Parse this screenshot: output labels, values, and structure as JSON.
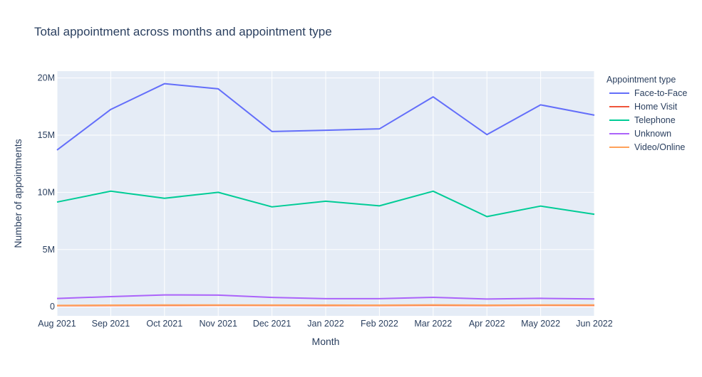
{
  "chart_data": {
    "type": "line",
    "title": "Total appointment across months and appointment type",
    "xlabel": "Month",
    "ylabel": "Number of appointments",
    "categories": [
      "Aug 2021",
      "Sep 2021",
      "Oct 2021",
      "Nov 2021",
      "Dec 2021",
      "Jan 2022",
      "Feb 2022",
      "Mar 2022",
      "Apr 2022",
      "May 2022",
      "Jun 2022"
    ],
    "ylim": [
      -800000,
      20600000
    ],
    "yticks": [
      0,
      5000000,
      10000000,
      15000000,
      20000000
    ],
    "ytick_labels": [
      "0",
      "5M",
      "10M",
      "15M",
      "20M"
    ],
    "grid": true,
    "legend": {
      "title": "Appointment type",
      "position": "right"
    },
    "series": [
      {
        "name": "Face-to-Face",
        "color": "#636efa",
        "values": [
          13700000,
          17250000,
          19500000,
          19050000,
          15320000,
          15430000,
          15550000,
          18350000,
          15050000,
          17650000,
          16750000
        ]
      },
      {
        "name": "Home Visit",
        "color": "#ef553b",
        "values": [
          90000,
          100000,
          110000,
          120000,
          110000,
          105000,
          100000,
          115000,
          100000,
          115000,
          110000
        ]
      },
      {
        "name": "Telephone",
        "color": "#00cc96",
        "values": [
          9150000,
          10100000,
          9480000,
          10000000,
          8730000,
          9220000,
          8820000,
          10100000,
          7880000,
          8800000,
          8080000
        ]
      },
      {
        "name": "Unknown",
        "color": "#ab63fa",
        "values": [
          720000,
          880000,
          1030000,
          1010000,
          810000,
          700000,
          700000,
          820000,
          670000,
          730000,
          680000
        ]
      },
      {
        "name": "Video/Online",
        "color": "#ffa15a",
        "values": [
          110000,
          130000,
          150000,
          150000,
          140000,
          140000,
          130000,
          160000,
          130000,
          150000,
          150000
        ]
      }
    ]
  }
}
